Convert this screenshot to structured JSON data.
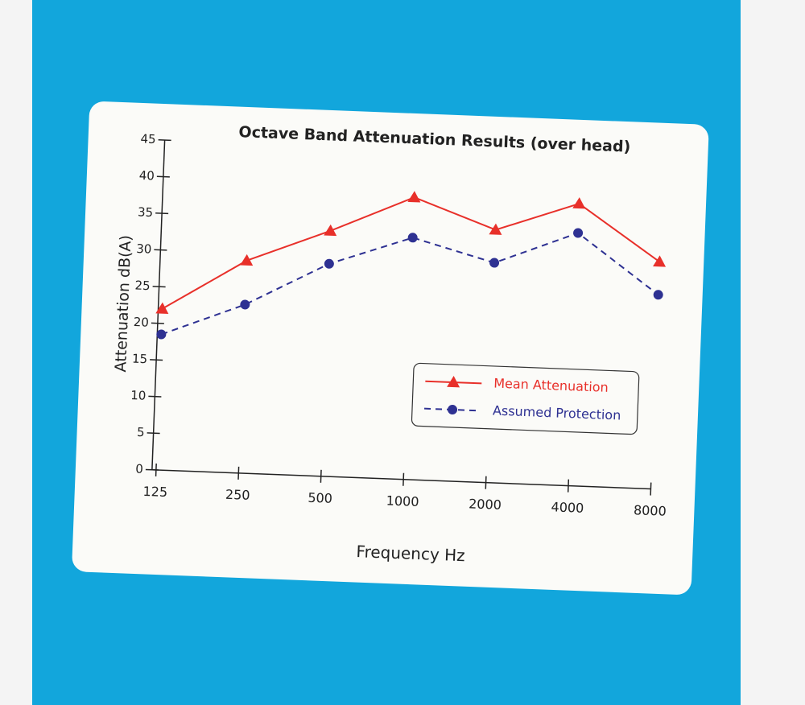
{
  "chart_data": {
    "type": "line",
    "title": "Octave Band Attenuation Results (over head)",
    "x_label": "Frequency Hz",
    "y_label": "Attenuation dB(A)",
    "categories": [
      "125",
      "250",
      "500",
      "1000",
      "2000",
      "4000",
      "8000"
    ],
    "series": [
      {
        "name": "Mean Attenuation",
        "color": "#e8302a",
        "marker": "triangle",
        "dashed": false,
        "values": [
          22,
          29,
          33.5,
          38.5,
          34.5,
          38.5,
          31
        ]
      },
      {
        "name": "Assumed Protection",
        "color": "#2e3192",
        "marker": "circle",
        "dashed": true,
        "values": [
          18.5,
          23,
          29,
          33,
          30,
          34.5,
          26.5
        ]
      }
    ],
    "ylim": [
      0,
      45
    ],
    "yticks": [
      0,
      5,
      10,
      15,
      20,
      25,
      30,
      35,
      40,
      45
    ],
    "legend": "lower-right"
  }
}
